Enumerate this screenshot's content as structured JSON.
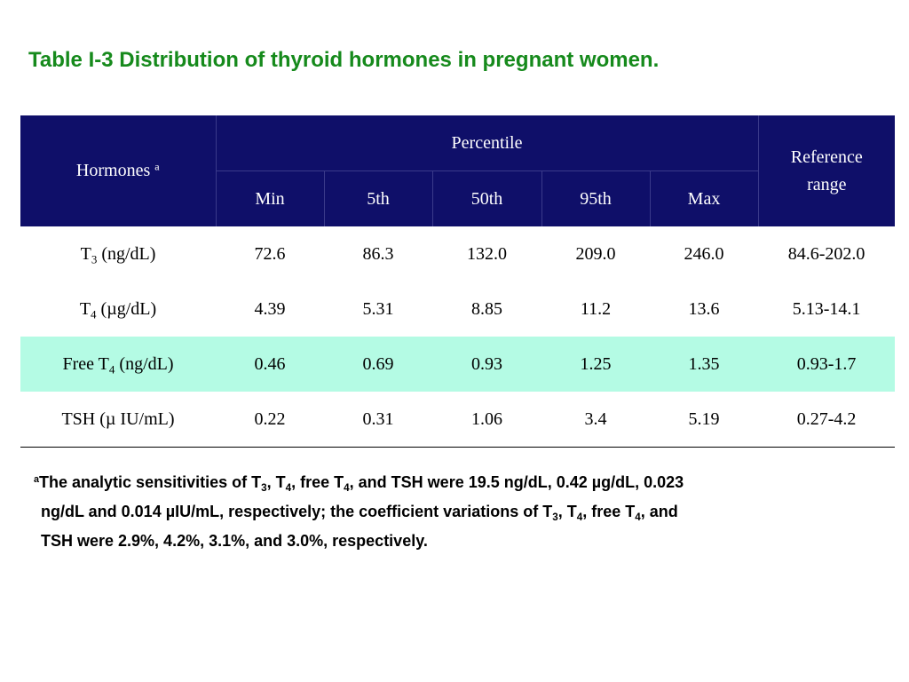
{
  "title": "Table I-3 Distribution of thyroid hormones in pregnant women.",
  "table": {
    "header": {
      "hormones": "Hormones",
      "hormones_sup": "a",
      "percentile": "Percentile",
      "reference_line1": "Reference",
      "reference_line2": "range",
      "columns": [
        "Min",
        "5th",
        "50th",
        "95th",
        "Max"
      ]
    },
    "rows": [
      {
        "label_pre": "T",
        "label_sub": "3",
        "label_post": " (ng/dL)",
        "values": [
          "72.6",
          "86.3",
          "132.0",
          "209.0",
          "246.0"
        ],
        "reference": "84.6-202.0",
        "highlight": false
      },
      {
        "label_pre": "T",
        "label_sub": "4",
        "label_post": " (µg/dL)",
        "values": [
          "4.39",
          "5.31",
          "8.85",
          "11.2",
          "13.6"
        ],
        "reference": "5.13-14.1",
        "highlight": false
      },
      {
        "label_pre": "Free T",
        "label_sub": "4",
        "label_post": " (ng/dL)",
        "values": [
          "0.46",
          "0.69",
          "0.93",
          "1.25",
          "1.35"
        ],
        "reference": "0.93-1.7",
        "highlight": true
      },
      {
        "label_pre": "TSH (µ IU/mL)",
        "label_sub": "",
        "label_post": "",
        "values": [
          "0.22",
          "0.31",
          "1.06",
          "3.4",
          "5.19"
        ],
        "reference": "0.27-4.2",
        "highlight": false
      }
    ]
  },
  "footnote": {
    "marker": "a",
    "l1_a": "The analytic sensitivities of T",
    "l1_s1": "3",
    "l1_b": ", T",
    "l1_s2": "4",
    "l1_c": ", free T",
    "l1_s3": "4",
    "l1_d": ", and TSH were 19.5 ng/dL, 0.42 µg/dL, 0.023",
    "l2_a": "ng/dL and 0.014 µIU/mL, respectively; the coefficient variations of T",
    "l2_s1": "3",
    "l2_b": ", T",
    "l2_s2": "4",
    "l2_c": ", free T",
    "l2_s3": "4",
    "l2_d": ", and",
    "l3": "TSH were 2.9%, 4.2%, 3.1%, and 3.0%, respectively."
  },
  "colors": {
    "title": "#168a1c",
    "header_bg": "#0f0f69",
    "highlight_row": "#b4fbe4"
  }
}
